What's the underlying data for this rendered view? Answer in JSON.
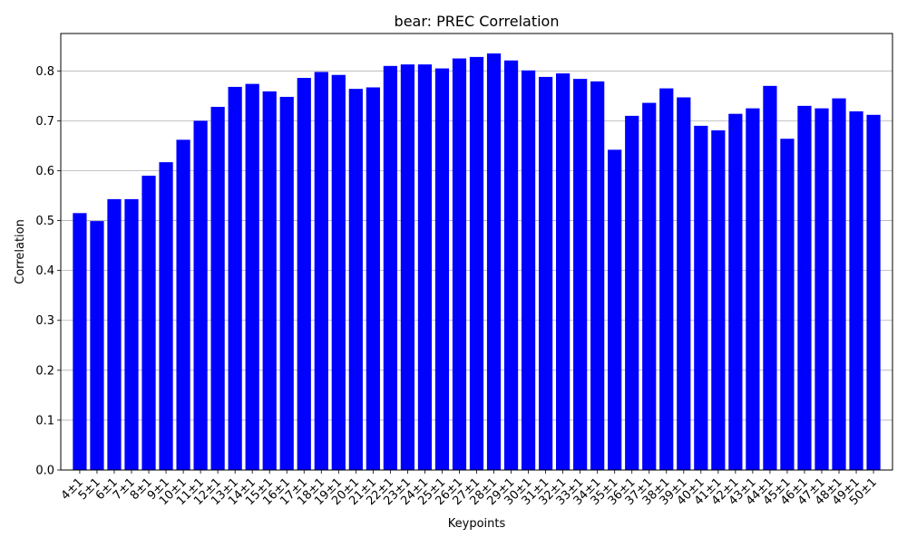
{
  "chart_data": {
    "type": "bar",
    "title": "bear: PREC Correlation",
    "xlabel": "Keypoints",
    "ylabel": "Correlation",
    "ylim": [
      0,
      0.875
    ],
    "yticks": [
      0.0,
      0.1,
      0.2,
      0.3,
      0.4,
      0.5,
      0.6,
      0.7,
      0.8
    ],
    "ytick_labels": [
      "0.0",
      "0.1",
      "0.2",
      "0.3",
      "0.4",
      "0.5",
      "0.6",
      "0.7",
      "0.8"
    ],
    "grid": "y",
    "bar_color": "#0000ff",
    "categories": [
      "4±1",
      "5±1",
      "6±1",
      "7±1",
      "8±1",
      "9±1",
      "10±1",
      "11±1",
      "12±1",
      "13±1",
      "14±1",
      "15±1",
      "16±1",
      "17±1",
      "18±1",
      "19±1",
      "20±1",
      "21±1",
      "22±1",
      "23±1",
      "24±1",
      "25±1",
      "26±1",
      "27±1",
      "28±1",
      "29±1",
      "30±1",
      "31±1",
      "32±1",
      "33±1",
      "34±1",
      "35±1",
      "36±1",
      "37±1",
      "38±1",
      "39±1",
      "40±1",
      "41±1",
      "42±1",
      "43±1",
      "44±1",
      "45±1",
      "46±1",
      "47±1",
      "48±1",
      "49±1",
      "50±1"
    ],
    "values": [
      0.515,
      0.499,
      0.543,
      0.543,
      0.59,
      0.617,
      0.662,
      0.7,
      0.728,
      0.768,
      0.774,
      0.759,
      0.748,
      0.786,
      0.798,
      0.792,
      0.764,
      0.767,
      0.81,
      0.813,
      0.813,
      0.805,
      0.825,
      0.828,
      0.835,
      0.821,
      0.801,
      0.788,
      0.795,
      0.784,
      0.779,
      0.642,
      0.71,
      0.736,
      0.765,
      0.747,
      0.69,
      0.681,
      0.714,
      0.725,
      0.77,
      0.664,
      0.73,
      0.725,
      0.745,
      0.719,
      0.712
    ]
  }
}
